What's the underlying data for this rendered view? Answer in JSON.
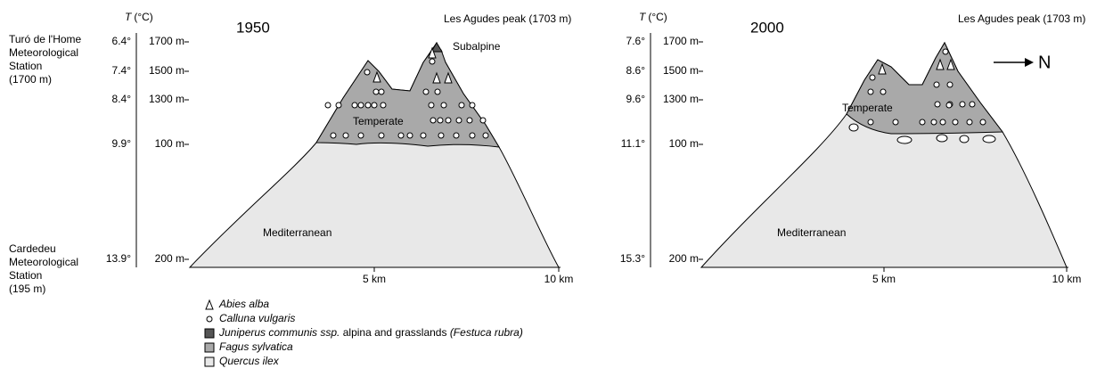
{
  "stations": {
    "top": [
      "Turó de l'Home",
      "Meteorological",
      "Station",
      "(1700 m)"
    ],
    "bottom": [
      "Cardedeu",
      "Meteorological",
      "Station",
      "(195 m)"
    ]
  },
  "panels": [
    {
      "year": "1950",
      "temp_symbol": "T",
      "temp_unit": "(°C)",
      "temps": [
        "6.4°",
        "7.4°",
        "8.4°",
        "9.9°",
        "13.9°"
      ],
      "altitudes": [
        "1700 m",
        "1500 m",
        "1300 m",
        "100 m",
        "200 m"
      ],
      "peak": "Les Agudes peak (1703 m)",
      "subalpine": "Subalpine",
      "temperate": "Temperate",
      "mediterranean": "Mediterranean",
      "distances": [
        "5 km",
        "10 km"
      ]
    },
    {
      "year": "2000",
      "temp_symbol": "T",
      "temp_unit": "(°C)",
      "temps": [
        "7.6°",
        "8.6°",
        "9.6°",
        "11.1°",
        "15.3°"
      ],
      "altitudes": [
        "1700 m",
        "1500 m",
        "1300 m",
        "100 m",
        "200 m"
      ],
      "peak": "Les Agudes peak (1703 m)",
      "temperate": "Temperate",
      "mediterranean": "Mediterranean",
      "distances": [
        "5 km",
        "10 km"
      ]
    }
  ],
  "north": "N",
  "legend": {
    "abies": "Abies alba",
    "calluna": "Calluna vulgaris",
    "juniperus": [
      "Juniperus communis ssp.",
      " alpina and grasslands ",
      "(Festuca rubra)"
    ],
    "fagus": "Fagus sylvatica",
    "quercus": "Quercus ilex"
  }
}
